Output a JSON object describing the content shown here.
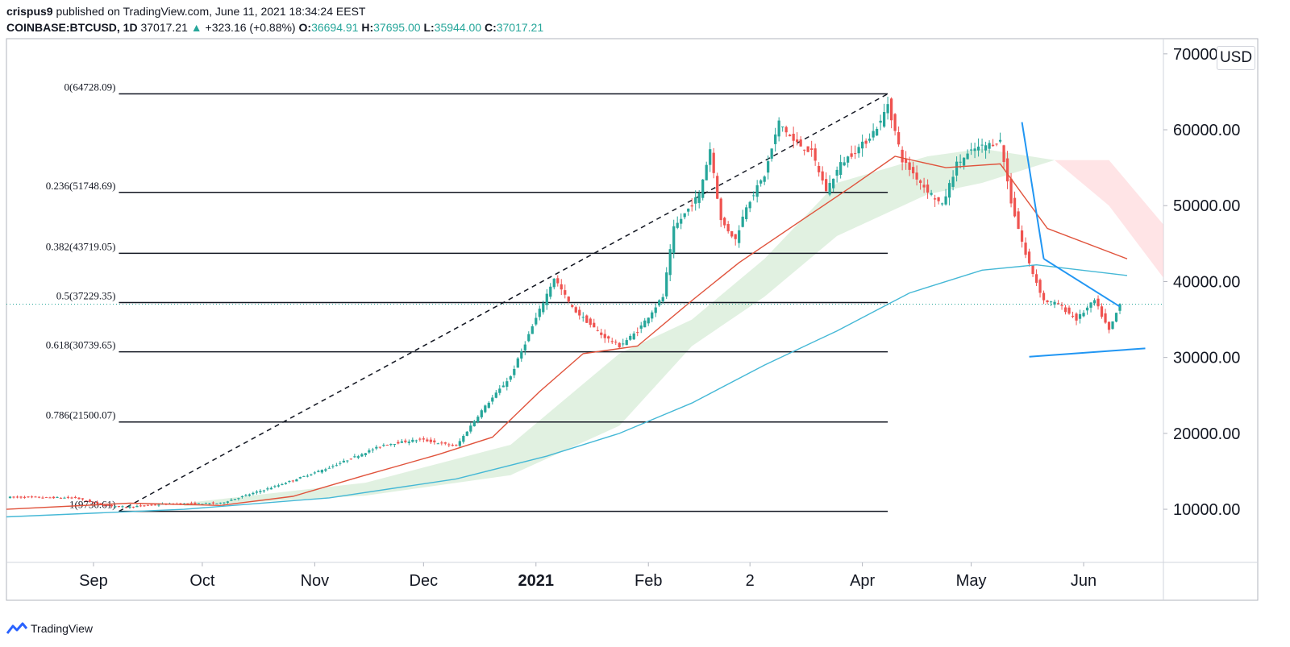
{
  "header": {
    "author": "crispus9",
    "published_text": "published on TradingView.com, June 11, 2021 18:34:24 EEST",
    "symbol": "COINBASE:BTCUSD, 1D",
    "last_price": "37017.21",
    "change_arrow": "▲",
    "change": "+323.16 (+0.88%)",
    "open_label": "O:",
    "open": "36694.91",
    "high_label": "H:",
    "high": "37695.00",
    "low_label": "L:",
    "low": "35944.00",
    "close_label": "C:",
    "close": "37017.21"
  },
  "currency_badge": "USD",
  "branding": "TradingView",
  "colors": {
    "up": "#26a69a",
    "candle_up": "#26a69a",
    "candle_down": "#ef5350",
    "ma_short": "#e0533c",
    "ma_long": "#45b8d6",
    "trendline": "#2196f3",
    "cloud_green": "#c8e6c9",
    "cloud_red": "#ffcdd2"
  },
  "chart_data": {
    "type": "candlestick",
    "title": "COINBASE:BTCUSD, 1D",
    "ylim": [
      3000,
      72000
    ],
    "y_ticks": [
      {
        "value": 10000,
        "label": "10000.00"
      },
      {
        "value": 20000,
        "label": "20000.00"
      },
      {
        "value": 30000,
        "label": "30000.00"
      },
      {
        "value": 40000,
        "label": "40000.00"
      },
      {
        "value": 50000,
        "label": "50000.00"
      },
      {
        "value": 60000,
        "label": "60000.00"
      },
      {
        "value": 70000,
        "label": "70000.00"
      }
    ],
    "x_ticks": [
      {
        "day": 5,
        "label": "Sep",
        "bold": false
      },
      {
        "day": 35,
        "label": "Oct",
        "bold": false
      },
      {
        "day": 66,
        "label": "Nov",
        "bold": false
      },
      {
        "day": 96,
        "label": "Dec",
        "bold": false
      },
      {
        "day": 127,
        "label": "2021",
        "bold": true
      },
      {
        "day": 158,
        "label": "Feb",
        "bold": false
      },
      {
        "day": 186,
        "label": "2",
        "bold": false
      },
      {
        "day": 217,
        "label": "Apr",
        "bold": false
      },
      {
        "day": 247,
        "label": "May",
        "bold": false
      },
      {
        "day": 278,
        "label": "Jun",
        "bold": false
      }
    ],
    "x_range_days": [
      -19,
      300
    ],
    "fibonacci": {
      "start_day": 12,
      "end_day": 224,
      "levels": [
        {
          "ratio": "0",
          "price": 64728.09,
          "label": "0(64728.09)"
        },
        {
          "ratio": "0.236",
          "price": 51748.69,
          "label": "0.236(51748.69)"
        },
        {
          "ratio": "0.382",
          "price": 43719.05,
          "label": "0.382(43719.05)"
        },
        {
          "ratio": "0.5",
          "price": 37229.35,
          "label": "0.5(37229.35)"
        },
        {
          "ratio": "0.618",
          "price": 30739.65,
          "label": "0.618(30739.65)"
        },
        {
          "ratio": "0.786",
          "price": 21500.07,
          "label": "0.786(21500.07)"
        },
        {
          "ratio": "1",
          "price": 9730.61,
          "label": "1(9730.61)"
        }
      ]
    },
    "trend_diagonal": {
      "from": [
        12,
        9730
      ],
      "to": [
        224,
        64728
      ]
    },
    "current_price": 37017.21,
    "trendlines": [
      {
        "from": [
          261,
          61000
        ],
        "to": [
          267,
          43000
        ]
      },
      {
        "from": [
          267,
          43000
        ],
        "to": [
          288,
          36700
        ]
      },
      {
        "from": [
          263,
          30100
        ],
        "to": [
          295,
          31200
        ]
      }
    ],
    "key_prices": [
      {
        "day": -19,
        "price": 11600
      },
      {
        "day": 0,
        "price": 11500
      },
      {
        "day": 8,
        "price": 10500
      },
      {
        "day": 14,
        "price": 10300
      },
      {
        "day": 25,
        "price": 10700
      },
      {
        "day": 40,
        "price": 10800
      },
      {
        "day": 55,
        "price": 13000
      },
      {
        "day": 70,
        "price": 15500
      },
      {
        "day": 85,
        "price": 18500
      },
      {
        "day": 95,
        "price": 19200
      },
      {
        "day": 105,
        "price": 18300
      },
      {
        "day": 112,
        "price": 23000
      },
      {
        "day": 120,
        "price": 27500
      },
      {
        "day": 125,
        "price": 33000
      },
      {
        "day": 132,
        "price": 40500
      },
      {
        "day": 137,
        "price": 36500
      },
      {
        "day": 145,
        "price": 33000
      },
      {
        "day": 150,
        "price": 31500
      },
      {
        "day": 155,
        "price": 33500
      },
      {
        "day": 162,
        "price": 38000
      },
      {
        "day": 165,
        "price": 47000
      },
      {
        "day": 172,
        "price": 51500
      },
      {
        "day": 175,
        "price": 57500
      },
      {
        "day": 178,
        "price": 48000
      },
      {
        "day": 182,
        "price": 45500
      },
      {
        "day": 185,
        "price": 50000
      },
      {
        "day": 190,
        "price": 54000
      },
      {
        "day": 194,
        "price": 61000
      },
      {
        "day": 198,
        "price": 58500
      },
      {
        "day": 203,
        "price": 57000
      },
      {
        "day": 207,
        "price": 52000
      },
      {
        "day": 211,
        "price": 55500
      },
      {
        "day": 218,
        "price": 58500
      },
      {
        "day": 222,
        "price": 61000
      },
      {
        "day": 224,
        "price": 63500
      },
      {
        "day": 228,
        "price": 56000
      },
      {
        "day": 234,
        "price": 52500
      },
      {
        "day": 239,
        "price": 50000
      },
      {
        "day": 243,
        "price": 55500
      },
      {
        "day": 248,
        "price": 57500
      },
      {
        "day": 255,
        "price": 58500
      },
      {
        "day": 258,
        "price": 50500
      },
      {
        "day": 262,
        "price": 43500
      },
      {
        "day": 267,
        "price": 37500
      },
      {
        "day": 271,
        "price": 37000
      },
      {
        "day": 276,
        "price": 35000
      },
      {
        "day": 281,
        "price": 37500
      },
      {
        "day": 285,
        "price": 33500
      },
      {
        "day": 288,
        "price": 37017
      }
    ],
    "ma_short_points": [
      {
        "day": -19,
        "price": 10000
      },
      {
        "day": 15,
        "price": 10800
      },
      {
        "day": 40,
        "price": 10500
      },
      {
        "day": 60,
        "price": 11700
      },
      {
        "day": 80,
        "price": 14500
      },
      {
        "day": 100,
        "price": 17200
      },
      {
        "day": 115,
        "price": 19500
      },
      {
        "day": 128,
        "price": 25500
      },
      {
        "day": 140,
        "price": 30500
      },
      {
        "day": 155,
        "price": 31500
      },
      {
        "day": 170,
        "price": 37500
      },
      {
        "day": 183,
        "price": 42500
      },
      {
        "day": 200,
        "price": 48000
      },
      {
        "day": 214,
        "price": 52500
      },
      {
        "day": 226,
        "price": 56500
      },
      {
        "day": 240,
        "price": 55000
      },
      {
        "day": 255,
        "price": 55500
      },
      {
        "day": 268,
        "price": 47000
      },
      {
        "day": 290,
        "price": 43000
      }
    ],
    "ma_long_points": [
      {
        "day": -19,
        "price": 9000
      },
      {
        "day": 30,
        "price": 10000
      },
      {
        "day": 70,
        "price": 11500
      },
      {
        "day": 105,
        "price": 14000
      },
      {
        "day": 130,
        "price": 17000
      },
      {
        "day": 150,
        "price": 20000
      },
      {
        "day": 170,
        "price": 24000
      },
      {
        "day": 190,
        "price": 29000
      },
      {
        "day": 210,
        "price": 33500
      },
      {
        "day": 230,
        "price": 38500
      },
      {
        "day": 250,
        "price": 41500
      },
      {
        "day": 265,
        "price": 42200
      },
      {
        "day": 290,
        "price": 40800
      }
    ],
    "cloud_upper_points": [
      {
        "day": 30,
        "price": 10800
      },
      {
        "day": 80,
        "price": 13500
      },
      {
        "day": 120,
        "price": 18500
      },
      {
        "day": 150,
        "price": 30500
      },
      {
        "day": 170,
        "price": 35000
      },
      {
        "day": 190,
        "price": 43000
      },
      {
        "day": 210,
        "price": 53000
      },
      {
        "day": 235,
        "price": 56500
      },
      {
        "day": 250,
        "price": 57500
      },
      {
        "day": 270,
        "price": 56000
      }
    ],
    "cloud_lower_points": [
      {
        "day": 30,
        "price": 10400
      },
      {
        "day": 80,
        "price": 11800
      },
      {
        "day": 120,
        "price": 14500
      },
      {
        "day": 150,
        "price": 21000
      },
      {
        "day": 170,
        "price": 31500
      },
      {
        "day": 190,
        "price": 38000
      },
      {
        "day": 210,
        "price": 46000
      },
      {
        "day": 235,
        "price": 51500
      },
      {
        "day": 250,
        "price": 53000
      },
      {
        "day": 270,
        "price": 56000
      }
    ],
    "red_cloud_upper_points": [
      {
        "day": 270,
        "price": 56000
      },
      {
        "day": 285,
        "price": 56000
      },
      {
        "day": 300,
        "price": 47500
      }
    ],
    "red_cloud_lower_points": [
      {
        "day": 270,
        "price": 56000
      },
      {
        "day": 285,
        "price": 50000
      },
      {
        "day": 300,
        "price": 40500
      }
    ]
  }
}
